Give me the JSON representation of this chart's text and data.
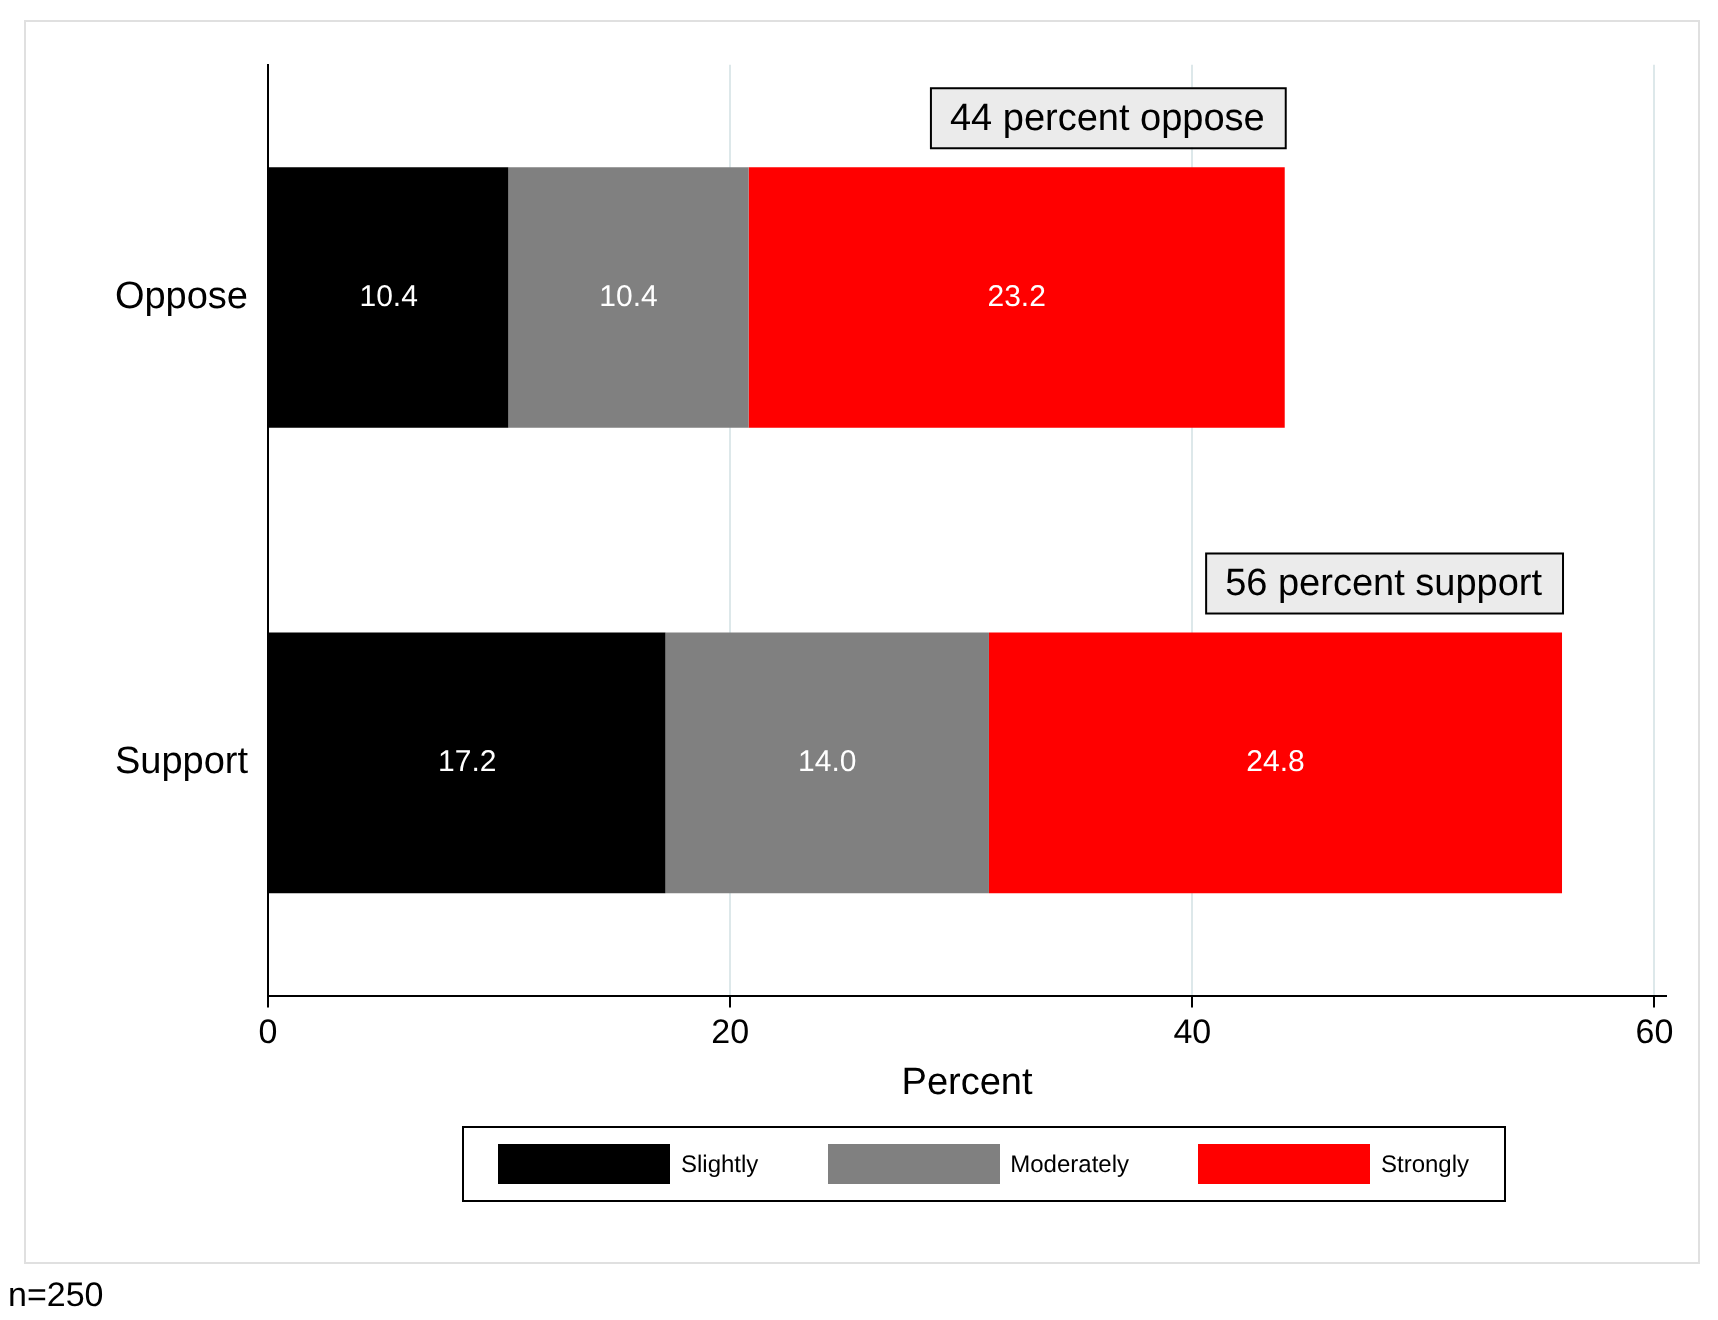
{
  "chart_data": {
    "type": "bar",
    "orientation": "horizontal",
    "stacked": true,
    "xlabel": "Percent",
    "categories": [
      "Oppose",
      "Support"
    ],
    "series": [
      {
        "name": "Slightly",
        "color": "#000000",
        "values": [
          10.4,
          17.2
        ],
        "value_labels": [
          "10.4",
          "17.2"
        ]
      },
      {
        "name": "Moderately",
        "color": "#808080",
        "values": [
          10.4,
          14.0
        ],
        "value_labels": [
          "10.4",
          "14.0"
        ]
      },
      {
        "name": "Strongly",
        "color": "#ff0000",
        "values": [
          23.2,
          24.8
        ],
        "value_labels": [
          "23.2",
          "24.8"
        ]
      }
    ],
    "xlim": [
      0,
      60.5
    ],
    "xticks": [
      0,
      20,
      40,
      60
    ],
    "grid": "x",
    "legend": "bottom",
    "annotations": [
      "44 percent oppose",
      "56 percent support",
      "n=250"
    ]
  }
}
